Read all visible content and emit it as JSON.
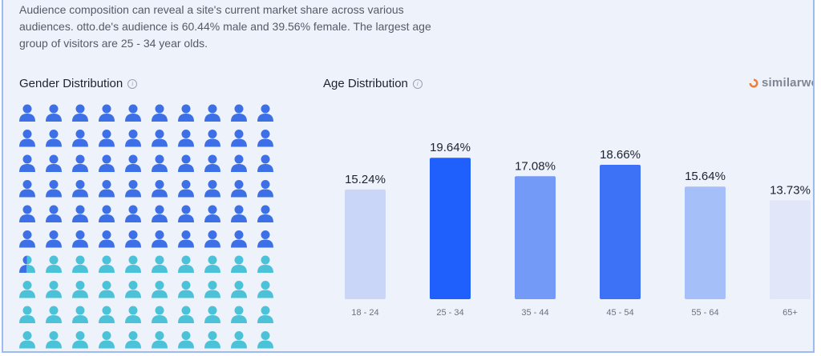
{
  "intro_text": "Audience composition can reveal a site's current market share across various audiences. otto.de's audience is 60.44% male and 39.56% female. The largest age group of visitors are 25 - 34 year olds.",
  "gender": {
    "title": "Gender Distribution",
    "male_percent": 60.44,
    "female_percent": 39.56,
    "male_color": "#3d6fe6",
    "female_color": "#4cc2d8"
  },
  "age": {
    "title": "Age Distribution"
  },
  "brand": {
    "name": "similarweb",
    "color": "#f07c3a"
  },
  "chart_data": [
    {
      "type": "bar",
      "title": "Age Distribution",
      "categories": [
        "18 - 24",
        "25 - 34",
        "35 - 44",
        "45 - 54",
        "55 - 64",
        "65+"
      ],
      "values": [
        15.24,
        19.64,
        17.08,
        18.66,
        15.64,
        13.73
      ],
      "value_labels": [
        "15.24%",
        "19.64%",
        "17.08%",
        "18.66%",
        "15.64%",
        "13.73%"
      ],
      "colors": [
        "#c9d6f7",
        "#1f5ffb",
        "#739af7",
        "#3d72f6",
        "#a5bff8",
        "#e1e6f8"
      ],
      "grid": false
    },
    {
      "type": "pictogram",
      "title": "Gender Distribution",
      "categories": [
        "male",
        "female"
      ],
      "values": [
        60.44,
        39.56
      ]
    }
  ]
}
